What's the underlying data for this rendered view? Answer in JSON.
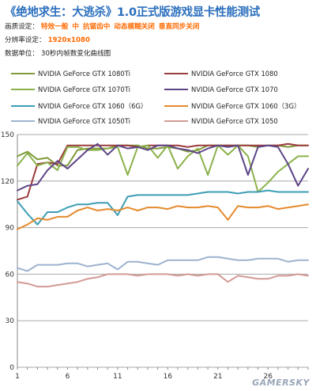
{
  "header": {
    "title": "《绝地求生：大逃杀》1.0正式版游戏显卡性能测试",
    "quality_label": "画质设定：",
    "quality_value": "特效一般  中  抗锯齿中  动态模糊关闭  垂直同步关闭",
    "resolution_label": "分辨率设定：",
    "resolution_value": "1920x1080",
    "data_label": "数据单位：",
    "data_value": "30秒内帧数变化曲线图"
  },
  "watermark": "GAMERSKY",
  "chart_data": {
    "type": "line",
    "x": [
      1,
      2,
      3,
      4,
      5,
      6,
      7,
      8,
      9,
      10,
      11,
      12,
      13,
      14,
      15,
      16,
      17,
      18,
      19,
      20,
      21,
      22,
      23,
      24,
      25,
      26,
      27,
      28,
      29,
      30
    ],
    "x_ticks": [
      1,
      6,
      11,
      16,
      21,
      26
    ],
    "ylim": [
      0,
      150
    ],
    "y_ticks": [
      0,
      30,
      60,
      90,
      120,
      150
    ],
    "grid": "horizontal",
    "legend_position": "top",
    "series": [
      {
        "name": "NVIDIA GeForce GTX 1080Ti",
        "color": "#7f9a3a",
        "values": [
          136,
          139,
          134,
          135,
          130,
          130,
          140,
          141,
          141,
          141,
          143,
          143,
          143,
          141,
          141,
          142,
          141,
          139,
          140,
          143,
          143,
          143,
          143,
          143,
          142,
          143,
          143,
          142,
          143,
          143
        ]
      },
      {
        "name": "NVIDIA GeForce GTX 1080",
        "color": "#9b3c3c",
        "values": [
          108,
          110,
          131,
          132,
          131,
          143,
          143,
          143,
          143,
          143,
          143,
          143,
          142,
          143,
          143,
          143,
          143,
          142,
          143,
          143,
          143,
          143,
          143,
          143,
          143,
          143,
          143,
          144,
          143,
          143
        ]
      },
      {
        "name": "NVIDIA GeForce GTX 1070Ti",
        "color": "#8bb14a",
        "values": [
          130,
          138,
          130,
          132,
          127,
          142,
          142,
          140,
          140,
          141,
          142,
          124,
          142,
          143,
          135,
          143,
          128,
          136,
          141,
          124,
          143,
          137,
          143,
          136,
          113,
          119,
          126,
          131,
          136,
          136
        ]
      },
      {
        "name": "NVIDIA GeForce GTX 1070",
        "color": "#5e4588",
        "values": [
          114,
          117,
          118,
          127,
          133,
          128,
          134,
          140,
          144,
          137,
          143,
          141,
          142,
          140,
          143,
          143,
          141,
          140,
          138,
          141,
          143,
          142,
          143,
          124,
          142,
          143,
          142,
          131,
          117,
          128
        ]
      },
      {
        "name": "NVIDIA GeForce GTX 1060（6G）",
        "color": "#3c9db4",
        "values": [
          107,
          99,
          92,
          100,
          100,
          103,
          105,
          105,
          106,
          106,
          98,
          110,
          111,
          111,
          111,
          111,
          111,
          111,
          112,
          113,
          113,
          113,
          112,
          113,
          113,
          114,
          113,
          113,
          113,
          113
        ]
      },
      {
        "name": "NVIDIA GeForce GTX 1060（3G）",
        "color": "#e48a2c",
        "values": [
          89,
          92,
          96,
          95,
          97,
          97,
          101,
          103,
          101,
          102,
          101,
          103,
          101,
          103,
          103,
          102,
          104,
          103,
          103,
          104,
          103,
          95,
          104,
          103,
          103,
          104,
          102,
          103,
          104,
          105
        ]
      },
      {
        "name": "NVIDIA GeForce GTX 1050Ti",
        "color": "#9db3cf",
        "values": [
          64,
          62,
          66,
          66,
          66,
          67,
          67,
          65,
          66,
          67,
          63,
          68,
          68,
          67,
          66,
          69,
          69,
          69,
          69,
          71,
          71,
          70,
          69,
          69,
          70,
          70,
          70,
          68,
          69,
          69
        ]
      },
      {
        "name": "NVIDIA GeForce GTX 1050",
        "color": "#d29a95",
        "values": [
          55,
          54,
          52,
          52,
          53,
          54,
          55,
          57,
          58,
          60,
          60,
          60,
          59,
          60,
          60,
          60,
          59,
          60,
          59,
          60,
          60,
          55,
          59,
          58,
          57,
          57,
          59,
          59,
          60,
          59
        ]
      }
    ]
  }
}
